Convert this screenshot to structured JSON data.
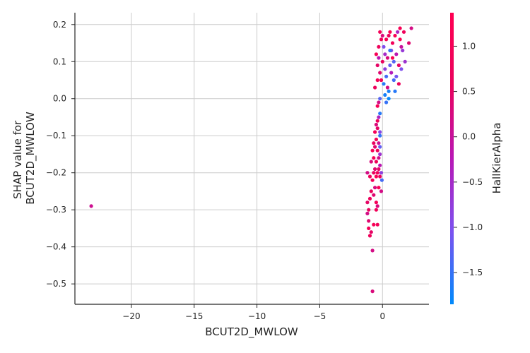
{
  "chart_data": {
    "type": "scatter",
    "xlabel": "BCUT2D_MWLOW",
    "ylabel_lines": [
      "SHAP value for",
      "BCUT2D_MWLOW"
    ],
    "colorbar_label": "HallKierAlpha",
    "xlim": [
      -24.5,
      3.7
    ],
    "ylim": [
      -0.555,
      0.232
    ],
    "xticks": [
      -20,
      -15,
      -10,
      -5,
      0
    ],
    "xtick_labels": [
      "−20",
      "−15",
      "−10",
      "−5",
      "0"
    ],
    "yticks": [
      0.2,
      0.1,
      0.0,
      -0.1,
      -0.2,
      -0.3,
      -0.4,
      -0.5
    ],
    "ytick_labels": [
      "0.2",
      "0.1",
      "0.0",
      "−0.1",
      "−0.2",
      "−0.3",
      "−0.4",
      "−0.5"
    ],
    "color_range": [
      -1.85,
      1.37
    ],
    "cticks": [
      1.0,
      0.5,
      0.0,
      -0.5,
      -1.0,
      -1.5
    ],
    "ctick_labels": [
      "1.0",
      "0.5",
      "0.0",
      "−0.5",
      "−1.0",
      "−1.5"
    ],
    "colormap": [
      "#008afb",
      "#7c52f0",
      "#b818b5",
      "#e9035e",
      "#ff0052"
    ],
    "grid": true,
    "points": [
      [
        -23.2,
        -0.29,
        0.1
      ],
      [
        -0.8,
        -0.52,
        0.3
      ],
      [
        -0.8,
        -0.41,
        0.2
      ],
      [
        -1.0,
        -0.37,
        0.8
      ],
      [
        -0.9,
        -0.36,
        0.5
      ],
      [
        -1.1,
        -0.35,
        1.0
      ],
      [
        -0.7,
        -0.34,
        1.1
      ],
      [
        -0.4,
        -0.34,
        0.9
      ],
      [
        -1.1,
        -0.33,
        0.4
      ],
      [
        -1.2,
        -0.31,
        0.2
      ],
      [
        -1.1,
        -0.3,
        0.6
      ],
      [
        -0.5,
        -0.3,
        0.9
      ],
      [
        -0.4,
        -0.29,
        0.3
      ],
      [
        -1.2,
        -0.28,
        0.5
      ],
      [
        -1.0,
        -0.27,
        0.7
      ],
      [
        -0.5,
        -0.28,
        1.0
      ],
      [
        -0.7,
        -0.26,
        0.4
      ],
      [
        -0.9,
        -0.25,
        0.6
      ],
      [
        -0.6,
        -0.24,
        0.3
      ],
      [
        -0.3,
        -0.24,
        1.2
      ],
      [
        -0.1,
        -0.25,
        0.2
      ],
      [
        -0.05,
        -0.22,
        -1.4
      ],
      [
        -1.2,
        -0.2,
        0.2
      ],
      [
        -1.0,
        -0.21,
        0.8
      ],
      [
        -0.8,
        -0.22,
        1.0
      ],
      [
        -0.7,
        -0.2,
        0.6
      ],
      [
        -0.6,
        -0.19,
        0.4
      ],
      [
        -0.5,
        -0.21,
        1.1
      ],
      [
        -0.4,
        -0.2,
        0.9
      ],
      [
        -0.3,
        -0.19,
        0.5
      ],
      [
        -0.2,
        -0.21,
        0.7
      ],
      [
        -0.2,
        -0.18,
        -0.2
      ],
      [
        -0.1,
        -0.2,
        -0.8
      ],
      [
        -0.9,
        -0.17,
        0.3
      ],
      [
        -0.7,
        -0.16,
        1.0
      ],
      [
        -0.5,
        -0.17,
        0.7
      ],
      [
        -0.3,
        -0.16,
        0.2
      ],
      [
        -0.2,
        -0.15,
        -0.6
      ],
      [
        -0.8,
        -0.14,
        1.1
      ],
      [
        -0.6,
        -0.13,
        0.4
      ],
      [
        -0.4,
        -0.14,
        0.8
      ],
      [
        -0.2,
        -0.13,
        -1.2
      ],
      [
        -0.7,
        -0.12,
        0.6
      ],
      [
        -0.5,
        -0.11,
        0.9
      ],
      [
        -0.3,
        -0.12,
        0.1
      ],
      [
        -0.2,
        -0.1,
        -1.5
      ],
      [
        -0.6,
        -0.09,
        1.0
      ],
      [
        -0.4,
        -0.08,
        0.5
      ],
      [
        -0.2,
        -0.09,
        -0.9
      ],
      [
        -0.5,
        -0.07,
        0.3
      ],
      [
        -0.4,
        -0.06,
        0.8
      ],
      [
        -0.3,
        -0.05,
        -0.4
      ],
      [
        -0.2,
        -0.04,
        -1.6
      ],
      [
        -0.4,
        -0.02,
        1.1
      ],
      [
        -0.3,
        -0.01,
        0.2
      ],
      [
        -0.2,
        0.0,
        -1.3
      ],
      [
        -0.6,
        0.03,
        0.7
      ],
      [
        -0.4,
        0.05,
        1.0
      ],
      [
        -0.2,
        0.07,
        0.4
      ],
      [
        0.1,
        0.04,
        -1.6
      ],
      [
        0.3,
        0.06,
        -1.4
      ],
      [
        0.5,
        0.02,
        -1.7
      ],
      [
        0.2,
        0.08,
        -0.8
      ],
      [
        0.6,
        0.09,
        -1.2
      ],
      [
        0.0,
        0.1,
        0.6
      ],
      [
        -0.5,
        0.12,
        1.1
      ],
      [
        -0.3,
        0.14,
        0.8
      ],
      [
        -0.1,
        0.16,
        1.0
      ],
      [
        0.2,
        0.12,
        -0.5
      ],
      [
        0.4,
        0.11,
        0.3
      ],
      [
        0.7,
        0.13,
        -0.9
      ],
      [
        0.9,
        0.1,
        -1.3
      ],
      [
        1.1,
        0.12,
        -0.2
      ],
      [
        1.3,
        0.09,
        0.5
      ],
      [
        1.5,
        0.08,
        -1.0
      ],
      [
        0.8,
        0.15,
        0.9
      ],
      [
        1.0,
        0.17,
        1.2
      ],
      [
        1.2,
        0.18,
        -0.4
      ],
      [
        1.4,
        0.19,
        1.1
      ],
      [
        1.7,
        0.18,
        0.8
      ],
      [
        2.3,
        0.19,
        0.2
      ],
      [
        2.1,
        0.15,
        0.4
      ],
      [
        1.4,
        0.16,
        1.3
      ],
      [
        1.6,
        0.13,
        -0.7
      ],
      [
        0.3,
        0.16,
        1.1
      ],
      [
        0.5,
        0.17,
        0.6
      ],
      [
        -0.2,
        0.18,
        1.0
      ],
      [
        0.0,
        0.17,
        0.3
      ],
      [
        0.6,
        0.13,
        -1.5
      ],
      [
        0.9,
        0.05,
        -1.4
      ],
      [
        0.4,
        0.03,
        0.2
      ],
      [
        -0.1,
        0.05,
        0.9
      ],
      [
        0.2,
        0.01,
        -1.7
      ],
      [
        0.7,
        0.07,
        -0.3
      ],
      [
        1.1,
        0.06,
        -1.1
      ],
      [
        1.3,
        0.04,
        0.7
      ],
      [
        0.1,
        0.14,
        -1.0
      ],
      [
        0.8,
        0.11,
        1.2
      ],
      [
        -0.4,
        0.09,
        0.5
      ],
      [
        1.8,
        0.1,
        -0.6
      ],
      [
        1.0,
        0.02,
        -1.6
      ],
      [
        0.5,
        0.0,
        -1.8
      ],
      [
        0.3,
        -0.01,
        -1.5
      ],
      [
        -0.3,
        0.11,
        -0.2
      ],
      [
        1.5,
        0.14,
        0.0
      ],
      [
        0.6,
        0.18,
        1.3
      ]
    ]
  }
}
